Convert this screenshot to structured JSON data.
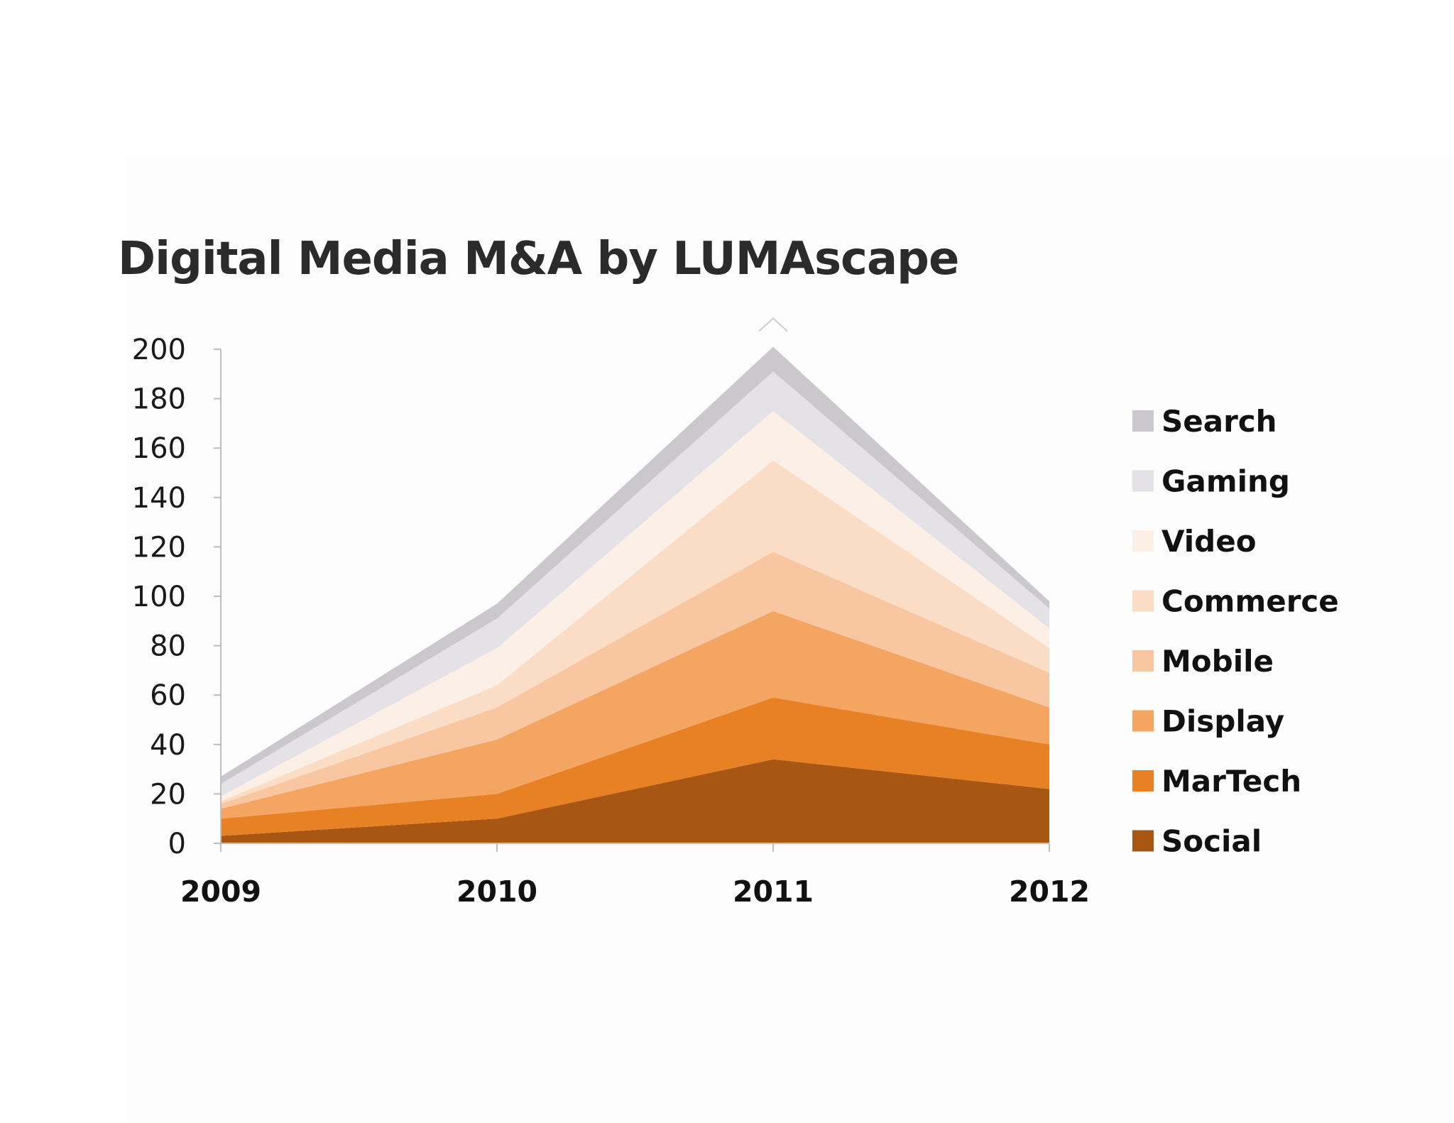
{
  "chart_data": {
    "type": "area",
    "stacked": true,
    "title": "Digital Media M&A by LUMAscape",
    "xlabel": "",
    "ylabel": "",
    "categories": [
      "2009",
      "2010",
      "2011",
      "2012"
    ],
    "ylim": [
      0,
      200
    ],
    "yticks": [
      0,
      20,
      40,
      60,
      80,
      100,
      120,
      140,
      160,
      180,
      200
    ],
    "grid": false,
    "legend_position": "right",
    "series": [
      {
        "name": "Social",
        "color": "#a85614",
        "values": [
          3,
          10,
          34,
          22
        ]
      },
      {
        "name": "MarTech",
        "color": "#e88024",
        "values": [
          7,
          10,
          25,
          18
        ]
      },
      {
        "name": "Display",
        "color": "#f4a562",
        "values": [
          4,
          22,
          35,
          15
        ]
      },
      {
        "name": "Mobile",
        "color": "#f8c6a0",
        "values": [
          2,
          13,
          24,
          14
        ]
      },
      {
        "name": "Commerce",
        "color": "#fbddc6",
        "values": [
          1,
          9,
          37,
          10
        ]
      },
      {
        "name": "Video",
        "color": "#fcefe5",
        "values": [
          2,
          15,
          20,
          8
        ]
      },
      {
        "name": "Gaming",
        "color": "#e4e2e6",
        "values": [
          5,
          12,
          16,
          8
        ]
      },
      {
        "name": "Search",
        "color": "#cac8cc",
        "values": [
          3,
          6,
          10,
          3
        ]
      }
    ]
  }
}
